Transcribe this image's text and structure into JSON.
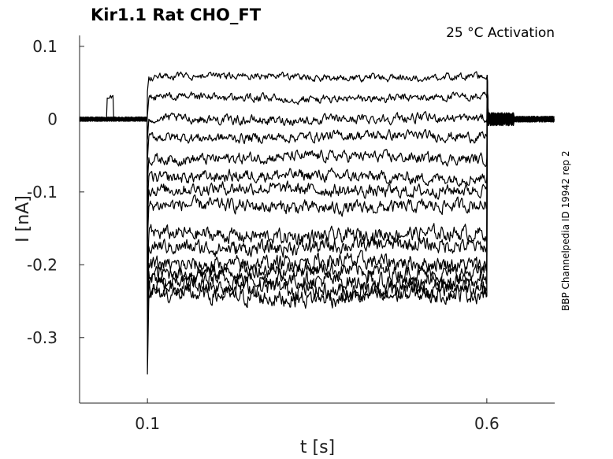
{
  "chart_data": {
    "type": "line",
    "title": "Kir1.1  Rat  CHO_FT",
    "annotation": "25 °C  Activation",
    "side_label": "BBP Channelpedia ID 19942 rep 2",
    "xlabel": "t [s]",
    "ylabel": "I [nA]",
    "xlim": [
      0.0,
      0.7
    ],
    "ylim": [
      -0.39,
      0.115
    ],
    "x_ticks": [
      0.1,
      0.6
    ],
    "x_tick_labels": [
      "0.1",
      "0.6"
    ],
    "y_ticks": [
      0.1,
      0,
      -0.1,
      -0.2,
      -0.3
    ],
    "y_tick_labels": [
      "0.1",
      "0",
      "-0.1",
      "-0.2",
      "-0.3"
    ],
    "grid": false,
    "stimulus": {
      "on": 0.1,
      "off": 0.6
    },
    "baseline_level": 0.0,
    "trace_steady_levels": [
      0.058,
      0.029,
      0.0,
      -0.024,
      -0.053,
      -0.079,
      -0.097,
      -0.12,
      -0.159,
      -0.175,
      -0.198,
      -0.209,
      -0.222,
      -0.232,
      -0.243
    ],
    "peak_transient": -0.35
  }
}
